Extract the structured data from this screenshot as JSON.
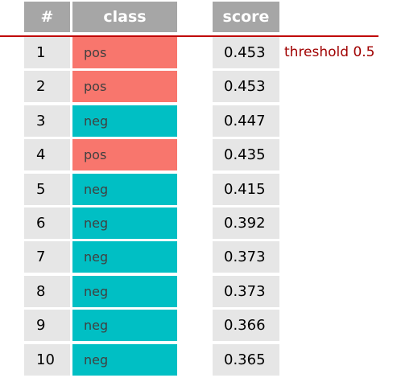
{
  "headers": {
    "num": "#",
    "class": "class",
    "score": "score"
  },
  "threshold_label": "threshold 0.5",
  "colors": {
    "pos": "#f8766d",
    "neg": "#00bfc4",
    "header": "#a6a6a6",
    "cell": "#e6e6e6",
    "threshold": "#c00000"
  },
  "rows": [
    {
      "num": "1",
      "class": "pos",
      "score": "0.453"
    },
    {
      "num": "2",
      "class": "pos",
      "score": "0.453"
    },
    {
      "num": "3",
      "class": "neg",
      "score": "0.447"
    },
    {
      "num": "4",
      "class": "pos",
      "score": "0.435"
    },
    {
      "num": "5",
      "class": "neg",
      "score": "0.415"
    },
    {
      "num": "6",
      "class": "neg",
      "score": "0.392"
    },
    {
      "num": "7",
      "class": "neg",
      "score": "0.373"
    },
    {
      "num": "8",
      "class": "neg",
      "score": "0.373"
    },
    {
      "num": "9",
      "class": "neg",
      "score": "0.366"
    },
    {
      "num": "10",
      "class": "neg",
      "score": "0.365"
    }
  ]
}
